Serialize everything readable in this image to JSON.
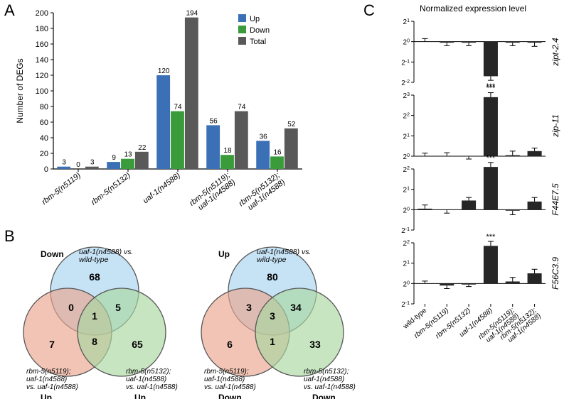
{
  "panelA": {
    "label": "A",
    "ylabel": "Number of DEGs",
    "ylim": [
      0,
      200
    ],
    "ytick_step": 20,
    "categories": [
      "rbm-5(n5119)",
      "rbm-5(n5132)",
      "uaf-1(n4588)",
      "rbm-5(n5119); uaf-1(n4588)",
      "rbm-5(n5132); uaf-1(n4588)"
    ],
    "series": [
      {
        "name": "Up",
        "color": "#3b6fb6",
        "values": [
          3,
          9,
          120,
          56,
          36
        ]
      },
      {
        "name": "Down",
        "color": "#3a9b3a",
        "values": [
          0,
          13,
          74,
          18,
          16
        ]
      },
      {
        "name": "Total",
        "color": "#595959",
        "values": [
          3,
          22,
          194,
          74,
          52
        ]
      }
    ],
    "label_fontsize": 11,
    "axis_fontsize": 12,
    "background_color": "#ffffff",
    "bar_width_ratio": 0.85
  },
  "panelB": {
    "label": "B",
    "venns": [
      {
        "top_dir": "Down",
        "side_dir": "Up",
        "top_label": "uaf-1(n4588) vs. wild-type",
        "left_label": "rbm-5(n5119); uaf-1(n4588) vs. uaf-1(n4588)",
        "right_label": "rbm-5(n5132); uaf-1(n4588) vs. uaf-1(n4588)",
        "regions": {
          "A_only": 68,
          "B_only": 7,
          "C_only": 65,
          "AB": 0,
          "AC": 5,
          "BC": 8,
          "ABC": 1
        }
      },
      {
        "top_dir": "Up",
        "side_dir": "Down",
        "top_label": "uaf-1(n4588) vs. wild-type",
        "left_label": "rbm-5(n5119); uaf-1(n4588) vs. uaf-1(n4588)",
        "right_label": "rbm-5(n5132); uaf-1(n4588) vs. uaf-1(n4588)",
        "regions": {
          "A_only": 80,
          "B_only": 6,
          "C_only": 33,
          "AB": 3,
          "AC": 34,
          "BC": 1,
          "ABC": 3
        }
      }
    ],
    "colors": {
      "top": "#a7d3ef",
      "left": "#e9a58e",
      "right": "#a9d7a0",
      "stroke": "#555"
    }
  },
  "panelC": {
    "label": "C",
    "title": "Normalized expression level",
    "genes": [
      "zipt-2.4",
      "zip-11",
      "F44E7.5",
      "F56C3.9"
    ],
    "xcats": [
      "wild-type",
      "rbm-5(n5119)",
      "rbm-5(n5132)",
      "uaf-1(n4588)",
      "rbm-5(n5119); uaf-1(n4588)",
      "rbm-5(n5132); uaf-1(n4588)"
    ],
    "bar_color": "#262626",
    "data": {
      "zipt-2.4": {
        "yticks": [
          -2,
          -1,
          0,
          1
        ],
        "values": [
          0,
          -0.05,
          -0.05,
          -1.7,
          -0.05,
          -0.05
        ],
        "err": [
          0.15,
          0.15,
          0.15,
          0.2,
          0.15,
          0.18
        ],
        "sig": [
          false,
          false,
          false,
          true,
          false,
          false
        ]
      },
      "zip-11": {
        "yticks": [
          0,
          1,
          2,
          3
        ],
        "values": [
          0,
          0.02,
          -0.02,
          2.9,
          0.05,
          0.25
        ],
        "err": [
          0.15,
          0.15,
          0.12,
          0.22,
          0.2,
          0.15
        ],
        "sig": [
          false,
          false,
          false,
          true,
          false,
          false
        ]
      },
      "F44E7.5": {
        "yticks": [
          -1,
          0,
          1,
          2
        ],
        "values": [
          0.05,
          -0.02,
          0.45,
          2.1,
          -0.05,
          0.4
        ],
        "err": [
          0.18,
          0.15,
          0.15,
          0.22,
          0.2,
          0.2
        ],
        "sig": [
          false,
          false,
          false,
          true,
          false,
          false
        ]
      },
      "F56C3.9": {
        "yticks": [
          -1,
          0,
          1,
          2
        ],
        "values": [
          0,
          -0.1,
          -0.05,
          1.85,
          0.1,
          0.5
        ],
        "err": [
          0.12,
          0.15,
          0.1,
          0.22,
          0.2,
          0.2
        ],
        "sig": [
          false,
          false,
          false,
          true,
          false,
          false
        ]
      }
    },
    "sig_marker": "***",
    "fontsize": 11
  }
}
